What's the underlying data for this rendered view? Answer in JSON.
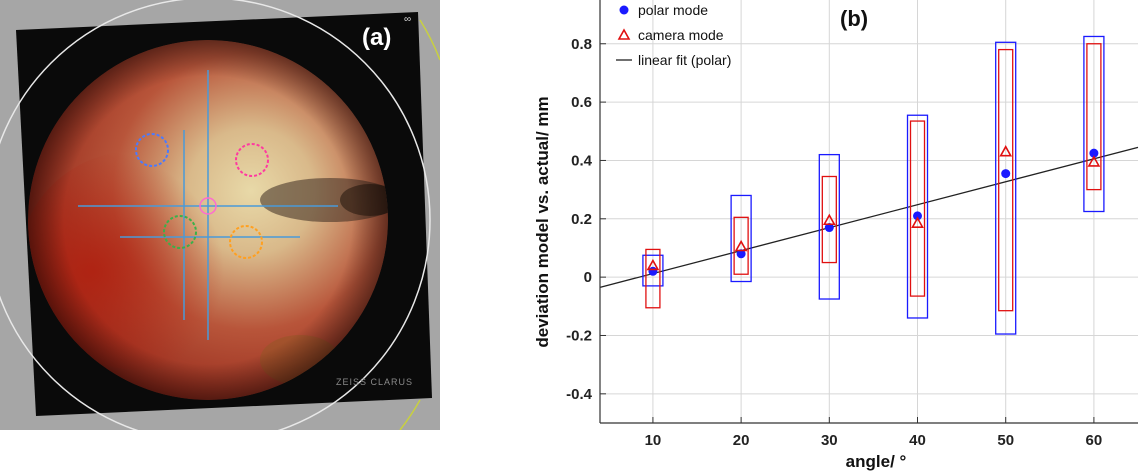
{
  "panel_a": {
    "label": "(a)",
    "corner_mark": "∞",
    "watermark": "ZEISS CLARUS"
  },
  "chart_data": {
    "type": "scatter",
    "panel_label": "(b)",
    "xlabel": "angle/ °",
    "ylabel": "deviation model vs. actual/ mm",
    "xlim": [
      4,
      65
    ],
    "ylim": [
      -0.5,
      0.95
    ],
    "x_ticks": [
      10,
      20,
      30,
      40,
      50,
      60
    ],
    "y_ticks": [
      -0.4,
      -0.2,
      0,
      0.2,
      0.4,
      0.6,
      0.8
    ],
    "y_tick_labels": [
      "-0.4",
      "-0.2",
      "0",
      "0.2",
      "0.4",
      "0.6",
      "0.8"
    ],
    "grid": true,
    "legend_position": "top-left",
    "series": [
      {
        "name": "polar mode",
        "marker": "circle",
        "color": "#1a1aff",
        "x": [
          10,
          20,
          30,
          40,
          50,
          60
        ],
        "y": [
          0.02,
          0.08,
          0.17,
          0.21,
          0.355,
          0.425
        ],
        "range_low": [
          -0.03,
          -0.015,
          -0.075,
          -0.14,
          -0.195,
          0.225
        ],
        "range_high": [
          0.075,
          0.28,
          0.42,
          0.555,
          0.805,
          0.825
        ]
      },
      {
        "name": "camera mode",
        "marker": "triangle",
        "color": "#e01010",
        "x": [
          10,
          20,
          30,
          40,
          50,
          60
        ],
        "y": [
          0.04,
          0.105,
          0.195,
          0.185,
          0.43,
          0.395
        ],
        "range_low": [
          -0.105,
          0.01,
          0.05,
          -0.065,
          -0.115,
          0.3
        ],
        "range_high": [
          0.095,
          0.205,
          0.345,
          0.535,
          0.78,
          0.8
        ]
      }
    ],
    "fit_line": {
      "name": "linear fit (polar)",
      "color": "#222222",
      "x": [
        4,
        65
      ],
      "y": [
        -0.035,
        0.445
      ]
    }
  }
}
